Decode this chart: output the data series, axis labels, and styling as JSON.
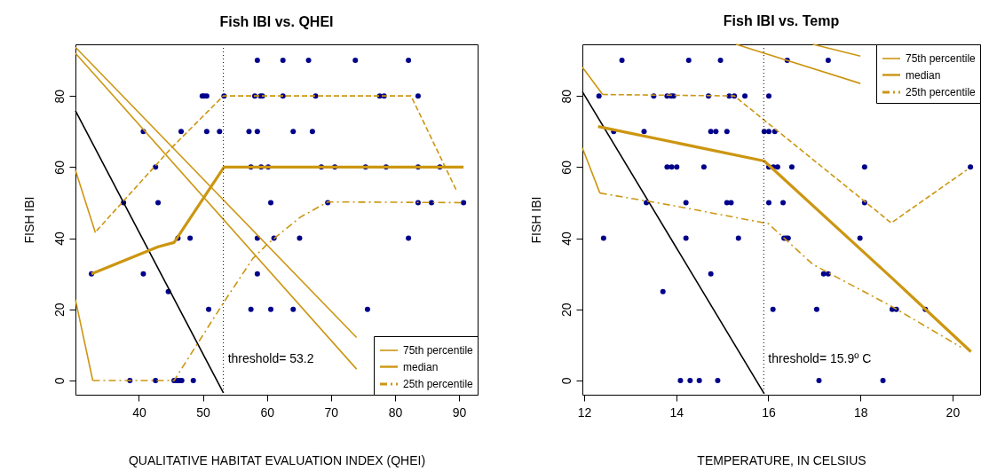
{
  "chart_data": [
    {
      "type": "scatter",
      "title": "Fish IBI vs. QHEI",
      "xlabel": "QUALITATIVE HABITAT EVALUATION INDEX (QHEI)",
      "ylabel": "FISH IBI",
      "xlim": [
        30.1,
        92.9
      ],
      "ylim": [
        -4,
        94.5
      ],
      "xticks": [
        40,
        50,
        60,
        70,
        80,
        90
      ],
      "yticks": [
        0,
        20,
        40,
        60,
        80
      ],
      "grid": false,
      "legend": "bottom right",
      "ref_lines": [
        {
          "axis": "x",
          "value": 53.2,
          "label": "threshold= 53.2",
          "color": "#000000",
          "line_style": "dotted"
        }
      ],
      "series": [
        {
          "marker": "circle",
          "color": "#00008b",
          "x": [
            58.5,
            62.5,
            66.5,
            73.8,
            82.1,
            49.9,
            50.2,
            50.6,
            53.3,
            58.1,
            59.0,
            59.3,
            62.5,
            67.6,
            77.6,
            78.3,
            83.6,
            40.7,
            46.6,
            50.6,
            52.6,
            57.2,
            58.5,
            64.1,
            67.1,
            42.6,
            57.5,
            59.1,
            60.2,
            68.5,
            70.6,
            75.4,
            78.6,
            83.6,
            87.0,
            37.6,
            43.0,
            60.6,
            69.5,
            83.6,
            85.7,
            90.7,
            46.1,
            48.0,
            58.5,
            61.1,
            65.1,
            82.1,
            32.6,
            40.7,
            58.5,
            44.6,
            50.9,
            57.5,
            60.6,
            64.1,
            75.7,
            38.6,
            42.6,
            45.5,
            45.9,
            46.3,
            46.7,
            48.5
          ],
          "values": [
            90,
            90,
            90,
            90,
            90,
            80,
            80,
            80,
            80,
            80,
            80,
            80,
            80,
            80,
            80,
            80,
            80,
            70,
            70,
            70,
            70,
            70,
            70,
            70,
            70,
            60,
            60,
            60,
            60,
            60,
            60,
            60,
            60,
            60,
            60,
            50,
            50,
            50,
            50,
            50,
            50,
            50,
            40,
            40,
            40,
            40,
            40,
            40,
            30,
            30,
            30,
            25,
            20,
            20,
            20,
            20,
            20,
            0,
            0,
            0,
            0,
            0,
            0,
            0
          ]
        },
        {
          "type": "line",
          "color": "#000000",
          "line_style": "solid",
          "x": [
            30.1,
            53.2
          ],
          "values": [
            75.8,
            -3.5
          ]
        },
        {
          "type": "line",
          "name": "75th percentile",
          "color": "#cc9611",
          "line_style": "solid",
          "x": [
            30.1,
            74.0
          ],
          "values": [
            93.7,
            12.1
          ]
        },
        {
          "type": "line",
          "color": "#cc9611",
          "line_style": "solid",
          "x": [
            30.1,
            74.0
          ],
          "values": [
            92.0,
            3.2
          ]
        },
        {
          "type": "line",
          "name": "median",
          "color": "#cc9611",
          "line_style": "solid",
          "x": [
            32.6,
            43.0,
            45.5,
            53.3,
            90.7
          ],
          "values": [
            30,
            37.6,
            38.8,
            60,
            60
          ]
        },
        {
          "type": "line",
          "color": "#cc9611",
          "line_style": "dashed",
          "x": [
            33.4,
            45.1,
            53.2,
            82.5,
            89.6
          ],
          "values": [
            42.1,
            65.4,
            80,
            80,
            53.4
          ]
        },
        {
          "type": "line",
          "color": "#cc9611",
          "line_style": "solid",
          "x": [
            30.1,
            33.2
          ],
          "values": [
            59.1,
            41.6
          ]
        },
        {
          "type": "line",
          "name": "25th percentile",
          "color": "#cc9611",
          "line_style": "dashdot",
          "x": [
            32.8,
            45.5,
            53.2,
            57.8,
            60.1,
            65.2,
            69.5,
            90.7
          ],
          "values": [
            0,
            0,
            21.8,
            34.3,
            38.4,
            45.9,
            50.2,
            50
          ]
        },
        {
          "type": "line",
          "color": "#cc9611",
          "line_style": "solid",
          "x": [
            30.1,
            32.8
          ],
          "values": [
            22.7,
            0
          ]
        }
      ]
    },
    {
      "type": "scatter",
      "title": "Fish IBI vs. Temp",
      "xlabel": "TEMPERATURE, IN CELSIUS",
      "ylabel": "FISH IBI",
      "xlim": [
        11.96,
        20.6
      ],
      "ylim": [
        -4,
        94.5
      ],
      "xticks": [
        12,
        14,
        16,
        18,
        20
      ],
      "yticks": [
        0,
        20,
        40,
        60,
        80
      ],
      "grid": false,
      "legend": "top right",
      "ref_lines": [
        {
          "axis": "x",
          "value": 15.9,
          "label": "threshold= 15.9º C",
          "color": "#000000",
          "line_style": "dotted"
        }
      ],
      "series": [
        {
          "marker": "circle",
          "color": "#00008b",
          "x": [
            12.82,
            14.27,
            14.96,
            16.41,
            17.3,
            12.32,
            13.51,
            13.8,
            13.89,
            13.94,
            14.7,
            15.15,
            15.26,
            15.49,
            16.01,
            12.64,
            13.3,
            14.75,
            14.86,
            15.1,
            15.91,
            16.01,
            16.14,
            13.8,
            13.9,
            14.01,
            14.6,
            16.01,
            16.11,
            16.2,
            16.51,
            18.09,
            20.39,
            13.35,
            14.21,
            15.1,
            15.19,
            16.01,
            16.32,
            18.09,
            12.42,
            14.21,
            15.35,
            16.34,
            16.39,
            16.43,
            17.99,
            14.75,
            17.2,
            17.3,
            13.71,
            16.1,
            17.05,
            18.69,
            18.78,
            19.41,
            14.09,
            14.3,
            14.5,
            14.9,
            17.1,
            18.49
          ],
          "values": [
            90,
            90,
            90,
            90,
            90,
            80,
            80,
            80,
            80,
            80,
            80,
            80,
            80,
            80,
            80,
            70,
            70,
            70,
            70,
            70,
            70,
            70,
            70,
            60,
            60,
            60,
            60,
            60,
            60,
            60,
            60,
            60,
            60,
            50,
            50,
            50,
            50,
            50,
            50,
            50,
            40,
            40,
            40,
            40,
            40,
            40,
            40,
            30,
            30,
            30,
            25,
            20,
            20,
            20,
            20,
            20,
            0,
            0,
            0,
            0,
            0,
            0
          ]
        },
        {
          "type": "line",
          "color": "#000000",
          "line_style": "solid",
          "x": [
            11.96,
            15.91
          ],
          "values": [
            81.2,
            -3.7
          ]
        },
        {
          "type": "line",
          "name": "75th percentile",
          "color": "#cc9611",
          "line_style": "solid",
          "x": [
            15.3,
            18.0
          ],
          "values": [
            94.5,
            83.5
          ]
        },
        {
          "type": "line",
          "color": "#cc9611",
          "line_style": "solid",
          "x": [
            16.97,
            18.0
          ],
          "values": [
            94.5,
            91.2
          ]
        },
        {
          "type": "line",
          "name": "median",
          "color": "#cc9611",
          "line_style": "solid",
          "x": [
            12.3,
            15.91,
            18.71,
            20.4
          ],
          "values": [
            71.4,
            61.7,
            28.5,
            8.1
          ]
        },
        {
          "type": "line",
          "color": "#cc9611",
          "line_style": "dashed",
          "x": [
            12.4,
            15.26,
            18.67,
            20.31
          ],
          "values": [
            80.4,
            80,
            44.3,
            59.2
          ]
        },
        {
          "type": "line",
          "color": "#cc9611",
          "line_style": "solid",
          "x": [
            11.96,
            12.4
          ],
          "values": [
            88.1,
            80.4
          ]
        },
        {
          "type": "line",
          "name": "25th percentile",
          "color": "#cc9611",
          "line_style": "dashdot",
          "x": [
            12.34,
            13.88,
            15.91,
            16.0,
            16.97,
            18.71,
            20.18
          ],
          "values": [
            52.7,
            49.3,
            44.3,
            44.1,
            32.6,
            20.6,
            9.4
          ]
        },
        {
          "type": "line",
          "color": "#cc9611",
          "line_style": "solid",
          "x": [
            11.96,
            12.34
          ],
          "values": [
            65.4,
            52.7
          ]
        }
      ]
    }
  ]
}
